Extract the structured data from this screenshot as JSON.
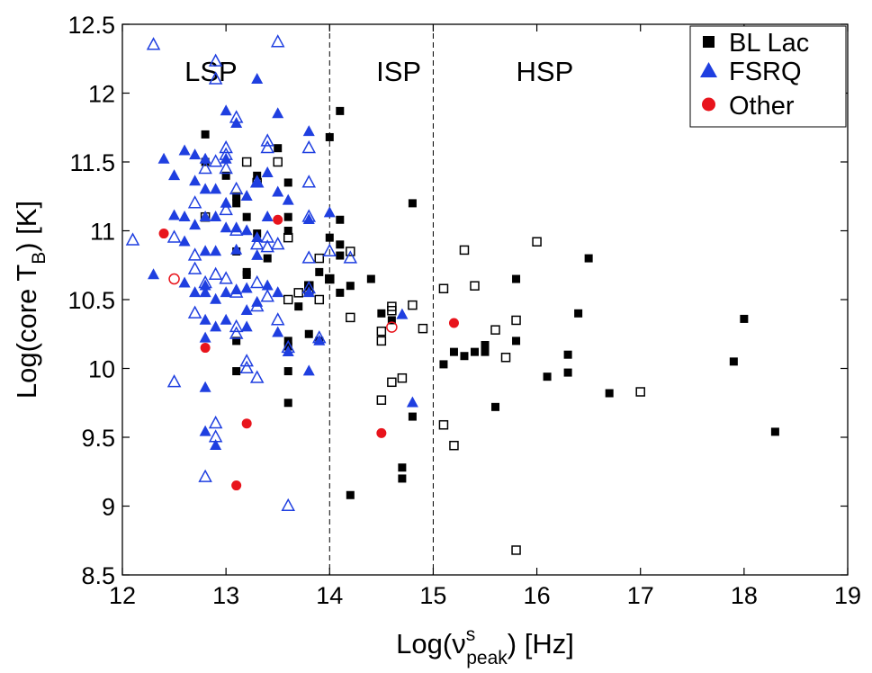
{
  "chart_data": {
    "type": "scatter",
    "xlabel": {
      "base": "Log(",
      "nu": "ν",
      "sup": "s",
      "sub": "peak",
      "rest": ") [Hz]"
    },
    "ylabel": {
      "base": "Log(core T",
      "sub": "B",
      "rest": ") [K]"
    },
    "xlim": [
      12,
      19
    ],
    "ylim": [
      8.5,
      12.5
    ],
    "xticks": [
      12,
      13,
      14,
      15,
      16,
      17,
      18,
      19
    ],
    "yticks": [
      8.5,
      9,
      9.5,
      10,
      10.5,
      11,
      11.5,
      12,
      12.5
    ],
    "ytick_labels": [
      "8.5",
      "9",
      "9.5",
      "10",
      "10.5",
      "11",
      "11.5",
      "12",
      "12.5"
    ],
    "boundaries": [
      14,
      15
    ],
    "regions": [
      {
        "label": "LSP",
        "x": 12.6
      },
      {
        "label": "ISP",
        "x": 14.45
      },
      {
        "label": "HSP",
        "x": 15.8
      }
    ],
    "legend": [
      {
        "label": "BL Lac",
        "marker": "square",
        "color": "#000000"
      },
      {
        "label": "FSRQ",
        "marker": "triangle",
        "color": "#1f3fe0"
      },
      {
        "label": "Other",
        "marker": "circle",
        "color": "#e8141c"
      }
    ],
    "series": [
      {
        "name": "BL Lac filled",
        "marker": "square",
        "filled": true,
        "color": "#000000",
        "points": [
          [
            12.8,
            11.7
          ],
          [
            12.8,
            11.5
          ],
          [
            13.0,
            11.4
          ],
          [
            13.1,
            11.25
          ],
          [
            13.1,
            11.2
          ],
          [
            13.2,
            11.1
          ],
          [
            13.2,
            10.7
          ],
          [
            13.3,
            11.4
          ],
          [
            13.4,
            10.8
          ],
          [
            13.5,
            11.6
          ],
          [
            13.6,
            11.1
          ],
          [
            13.6,
            11.35
          ],
          [
            13.6,
            11.0
          ],
          [
            13.3,
            10.98
          ],
          [
            13.1,
            10.85
          ],
          [
            13.2,
            10.68
          ],
          [
            13.1,
            10.2
          ],
          [
            13.1,
            9.98
          ],
          [
            13.6,
            10.2
          ],
          [
            13.6,
            10.16
          ],
          [
            13.6,
            9.98
          ],
          [
            13.6,
            9.75
          ],
          [
            13.7,
            10.45
          ],
          [
            13.8,
            10.25
          ],
          [
            13.8,
            10.6
          ],
          [
            13.9,
            10.7
          ],
          [
            13.9,
            10.2
          ],
          [
            14.0,
            11.68
          ],
          [
            14.1,
            11.87
          ],
          [
            14.0,
            10.95
          ],
          [
            14.1,
            11.08
          ],
          [
            14.1,
            10.9
          ],
          [
            14.1,
            10.82
          ],
          [
            14.1,
            10.55
          ],
          [
            14.2,
            10.6
          ],
          [
            14.0,
            10.65
          ],
          [
            14.4,
            10.65
          ],
          [
            14.5,
            10.4
          ],
          [
            14.6,
            10.35
          ],
          [
            14.8,
            11.2
          ],
          [
            14.8,
            9.65
          ],
          [
            14.7,
            9.28
          ],
          [
            14.7,
            9.2
          ],
          [
            14.2,
            9.08
          ],
          [
            15.1,
            10.03
          ],
          [
            15.2,
            10.12
          ],
          [
            15.3,
            10.09
          ],
          [
            15.4,
            10.12
          ],
          [
            15.5,
            10.17
          ],
          [
            15.5,
            10.12
          ],
          [
            15.6,
            9.72
          ],
          [
            15.8,
            10.65
          ],
          [
            15.8,
            10.2
          ],
          [
            16.1,
            9.94
          ],
          [
            16.3,
            10.1
          ],
          [
            16.3,
            9.97
          ],
          [
            16.4,
            10.4
          ],
          [
            16.5,
            10.8
          ],
          [
            16.7,
            9.82
          ],
          [
            17.9,
            10.05
          ],
          [
            18.0,
            10.36
          ],
          [
            18.3,
            9.54
          ]
        ]
      },
      {
        "name": "BL Lac open",
        "marker": "square",
        "filled": false,
        "color": "#000000",
        "points": [
          [
            12.8,
            11.1
          ],
          [
            13.2,
            11.5
          ],
          [
            13.3,
            11.35
          ],
          [
            13.5,
            11.5
          ],
          [
            13.6,
            10.5
          ],
          [
            13.6,
            10.95
          ],
          [
            13.7,
            10.55
          ],
          [
            13.8,
            10.6
          ],
          [
            13.8,
            10.57
          ],
          [
            13.9,
            10.8
          ],
          [
            13.9,
            10.5
          ],
          [
            14.0,
            10.65
          ],
          [
            14.2,
            10.85
          ],
          [
            14.2,
            10.37
          ],
          [
            14.5,
            10.27
          ],
          [
            14.5,
            10.2
          ],
          [
            14.5,
            9.77
          ],
          [
            14.6,
            10.45
          ],
          [
            14.6,
            10.42
          ],
          [
            14.6,
            9.9
          ],
          [
            14.7,
            9.93
          ],
          [
            14.8,
            10.46
          ],
          [
            14.9,
            10.29
          ],
          [
            15.1,
            10.58
          ],
          [
            15.1,
            9.59
          ],
          [
            15.2,
            9.44
          ],
          [
            15.3,
            10.86
          ],
          [
            15.4,
            10.6
          ],
          [
            15.6,
            10.28
          ],
          [
            15.7,
            10.08
          ],
          [
            15.8,
            10.35
          ],
          [
            15.8,
            8.68
          ],
          [
            16.0,
            10.92
          ],
          [
            17.0,
            9.83
          ]
        ]
      },
      {
        "name": "FSRQ filled",
        "marker": "triangle",
        "filled": true,
        "color": "#1f3fe0",
        "points": [
          [
            12.3,
            10.68
          ],
          [
            12.4,
            11.52
          ],
          [
            12.5,
            11.4
          ],
          [
            12.5,
            11.11
          ],
          [
            12.6,
            11.58
          ],
          [
            12.6,
            11.1
          ],
          [
            12.6,
            10.92
          ],
          [
            12.6,
            10.62
          ],
          [
            12.7,
            11.55
          ],
          [
            12.7,
            11.36
          ],
          [
            12.7,
            11.04
          ],
          [
            12.7,
            10.55
          ],
          [
            12.8,
            11.52
          ],
          [
            12.8,
            11.3
          ],
          [
            12.8,
            11.1
          ],
          [
            12.8,
            10.85
          ],
          [
            12.8,
            10.6
          ],
          [
            12.8,
            10.55
          ],
          [
            12.8,
            10.35
          ],
          [
            12.8,
            10.22
          ],
          [
            12.8,
            9.86
          ],
          [
            12.8,
            9.54
          ],
          [
            12.9,
            11.3
          ],
          [
            12.9,
            11.1
          ],
          [
            12.9,
            10.85
          ],
          [
            12.9,
            10.5
          ],
          [
            12.9,
            10.3
          ],
          [
            12.9,
            9.44
          ],
          [
            13.0,
            11.87
          ],
          [
            13.0,
            11.52
          ],
          [
            13.0,
            11.2
          ],
          [
            13.0,
            11.02
          ],
          [
            13.0,
            10.55
          ],
          [
            13.0,
            10.35
          ],
          [
            13.1,
            11.78
          ],
          [
            13.1,
            11.02
          ],
          [
            13.1,
            10.86
          ],
          [
            13.1,
            10.57
          ],
          [
            13.2,
            11.25
          ],
          [
            13.2,
            11.0
          ],
          [
            13.2,
            10.58
          ],
          [
            13.2,
            10.42
          ],
          [
            13.2,
            10.3
          ],
          [
            13.3,
            12.1
          ],
          [
            13.3,
            11.35
          ],
          [
            13.3,
            10.95
          ],
          [
            13.3,
            10.82
          ],
          [
            13.3,
            10.48
          ],
          [
            13.4,
            11.42
          ],
          [
            13.4,
            11.1
          ],
          [
            13.4,
            10.6
          ],
          [
            13.5,
            11.85
          ],
          [
            13.5,
            11.28
          ],
          [
            13.5,
            10.55
          ],
          [
            13.5,
            10.26
          ],
          [
            13.6,
            11.22
          ],
          [
            13.6,
            10.12
          ],
          [
            13.8,
            11.72
          ],
          [
            13.8,
            11.08
          ],
          [
            13.8,
            10.55
          ],
          [
            13.8,
            9.98
          ],
          [
            13.9,
            10.2
          ],
          [
            14.0,
            11.13
          ],
          [
            14.7,
            10.39
          ],
          [
            14.8,
            9.75
          ]
        ]
      },
      {
        "name": "FSRQ open",
        "marker": "triangle",
        "filled": false,
        "color": "#1f3fe0",
        "points": [
          [
            12.1,
            10.93
          ],
          [
            12.3,
            12.35
          ],
          [
            12.5,
            10.95
          ],
          [
            12.5,
            9.9
          ],
          [
            12.7,
            11.2
          ],
          [
            12.7,
            10.82
          ],
          [
            12.7,
            10.72
          ],
          [
            12.7,
            10.4
          ],
          [
            12.8,
            11.45
          ],
          [
            12.8,
            10.62
          ],
          [
            12.8,
            9.21
          ],
          [
            12.9,
            12.23
          ],
          [
            12.9,
            12.1
          ],
          [
            12.9,
            11.5
          ],
          [
            12.9,
            10.68
          ],
          [
            12.9,
            9.6
          ],
          [
            12.9,
            9.5
          ],
          [
            13.0,
            11.6
          ],
          [
            13.0,
            11.55
          ],
          [
            13.0,
            11.45
          ],
          [
            13.0,
            11.15
          ],
          [
            13.0,
            10.65
          ],
          [
            13.1,
            11.82
          ],
          [
            13.1,
            11.3
          ],
          [
            13.1,
            11.0
          ],
          [
            13.1,
            10.55
          ],
          [
            13.1,
            10.3
          ],
          [
            13.1,
            10.25
          ],
          [
            13.2,
            10.05
          ],
          [
            13.2,
            10.0
          ],
          [
            13.3,
            11.35
          ],
          [
            13.3,
            10.9
          ],
          [
            13.3,
            10.62
          ],
          [
            13.3,
            10.45
          ],
          [
            13.3,
            9.93
          ],
          [
            13.4,
            11.65
          ],
          [
            13.4,
            11.6
          ],
          [
            13.4,
            10.95
          ],
          [
            13.4,
            10.88
          ],
          [
            13.4,
            10.52
          ],
          [
            13.5,
            12.37
          ],
          [
            13.5,
            10.9
          ],
          [
            13.5,
            10.35
          ],
          [
            13.6,
            10.15
          ],
          [
            13.6,
            9.0
          ],
          [
            13.8,
            11.6
          ],
          [
            13.8,
            11.35
          ],
          [
            13.8,
            11.1
          ],
          [
            13.8,
            10.8
          ],
          [
            13.8,
            10.58
          ],
          [
            13.9,
            10.22
          ],
          [
            14.0,
            10.85
          ],
          [
            14.2,
            10.8
          ]
        ]
      },
      {
        "name": "Other filled",
        "marker": "circle",
        "filled": true,
        "color": "#e8141c",
        "points": [
          [
            12.4,
            10.98
          ],
          [
            12.8,
            10.15
          ],
          [
            13.1,
            9.15
          ],
          [
            13.2,
            9.6
          ],
          [
            13.5,
            11.08
          ],
          [
            14.5,
            9.53
          ],
          [
            15.2,
            10.33
          ]
        ]
      },
      {
        "name": "Other open",
        "marker": "circle",
        "filled": false,
        "color": "#e8141c",
        "points": [
          [
            12.5,
            10.65
          ],
          [
            14.6,
            10.3
          ]
        ]
      }
    ]
  }
}
